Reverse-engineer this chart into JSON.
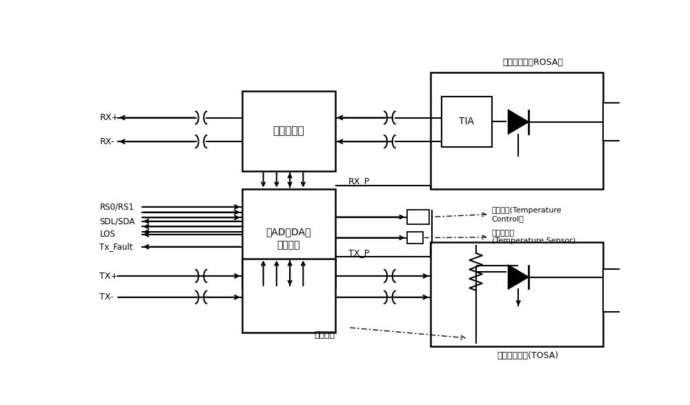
{
  "bg_color": "#ffffff",
  "figsize": [
    10.0,
    5.87
  ],
  "dpi": 100,
  "labels": {
    "rosa": "光接收组件（ROSA）",
    "tosa": "激光发射组件(TOSA)",
    "limiter": "限幅放大器",
    "mcu_line1": "带AD，DA的",
    "mcu_line2": "微处理器",
    "tia": "TIA",
    "rx_plus": "RX+",
    "rx_minus": "RX-",
    "rs0rs1": "RS0/RS1",
    "sdlsda": "SDL/SDA",
    "los": "LOS",
    "tx_fault": "Tx_Fault",
    "tx_plus": "TX+",
    "tx_minus": "TX-",
    "rx_p": "RX_P",
    "tx_p": "TX_P",
    "temp_ctrl_line1": "温度控制(Temperature",
    "temp_ctrl_line2": "Control）",
    "temp_sensor_line1": "温度传感器",
    "temp_sensor_line2": "(Temperature Sensor)",
    "heating": "加热电阵"
  }
}
